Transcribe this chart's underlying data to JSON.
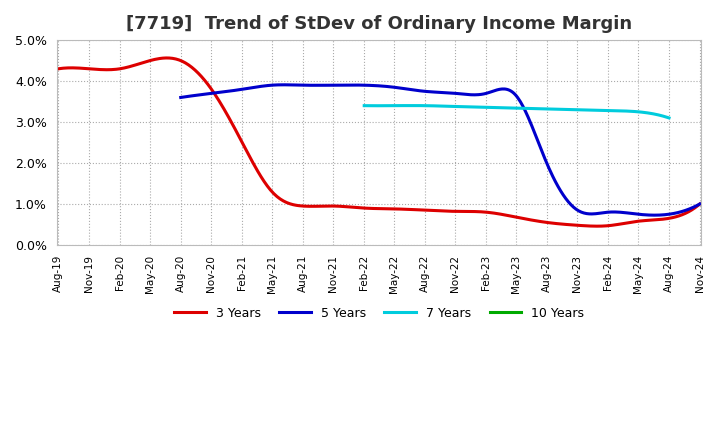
{
  "title": "[7719]  Trend of StDev of Ordinary Income Margin",
  "title_fontsize": 13,
  "title_color": "#333333",
  "background_color": "#ffffff",
  "plot_bg_color": "#ffffff",
  "grid_color": "#aaaaaa",
  "x_labels": [
    "Aug-19",
    "Nov-19",
    "Feb-20",
    "May-20",
    "Aug-20",
    "Nov-20",
    "Feb-21",
    "May-21",
    "Aug-21",
    "Nov-21",
    "Feb-22",
    "May-22",
    "Aug-22",
    "Nov-22",
    "Feb-23",
    "May-23",
    "Aug-23",
    "Nov-23",
    "Feb-24",
    "May-24",
    "Aug-24",
    "Nov-24"
  ],
  "series": {
    "3 Years": {
      "color": "#dd0000",
      "linewidth": 2.2,
      "values": [
        0.043,
        0.043,
        0.043,
        0.045,
        0.045,
        0.038,
        0.025,
        0.013,
        0.0095,
        0.0095,
        0.009,
        0.0088,
        0.0085,
        0.0082,
        0.008,
        0.0068,
        0.0055,
        0.0048,
        0.0047,
        0.0058,
        0.0065,
        0.01
      ]
    },
    "5 Years": {
      "color": "#0000cc",
      "linewidth": 2.2,
      "values": [
        null,
        null,
        null,
        null,
        0.036,
        0.037,
        0.038,
        0.039,
        0.039,
        0.039,
        0.039,
        0.0385,
        0.0375,
        0.037,
        0.037,
        0.0365,
        0.02,
        0.0085,
        0.008,
        0.0075,
        0.0075,
        0.01
      ]
    },
    "7 Years": {
      "color": "#00ccdd",
      "linewidth": 2.2,
      "values": [
        null,
        null,
        null,
        null,
        null,
        null,
        null,
        null,
        null,
        null,
        0.034,
        0.034,
        0.034,
        0.0338,
        0.0336,
        0.0334,
        0.0332,
        0.033,
        0.0328,
        0.0325,
        0.031,
        null
      ]
    },
    "10 Years": {
      "color": "#00aa00",
      "linewidth": 2.2,
      "values": [
        null,
        null,
        null,
        null,
        null,
        null,
        null,
        null,
        null,
        null,
        null,
        null,
        null,
        null,
        null,
        null,
        null,
        null,
        null,
        null,
        null,
        null
      ]
    }
  },
  "ylim": [
    0.0,
    0.05
  ],
  "yticks": [
    0.0,
    0.01,
    0.02,
    0.03,
    0.04,
    0.05
  ],
  "legend_ncol": 4
}
